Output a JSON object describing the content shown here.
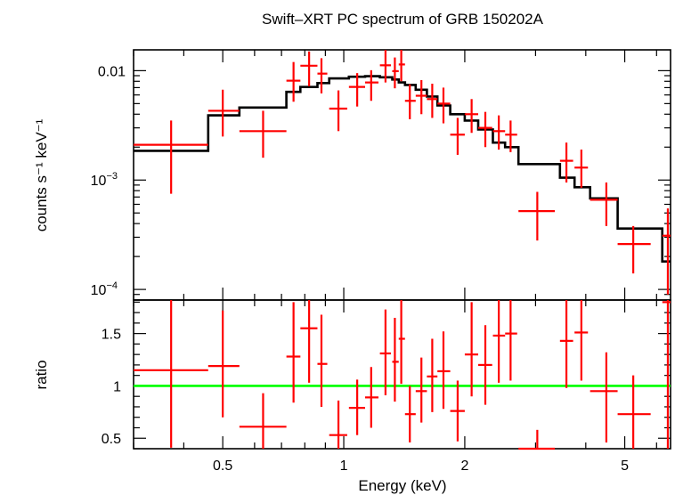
{
  "title": "Swift–XRT PC spectrum of GRB 150202A",
  "colors": {
    "data": "#ff0000",
    "model": "#000000",
    "ratio_line": "#00ff00",
    "axes": "#000000"
  },
  "chart_data": [
    {
      "type": "scatter",
      "panel": "spectrum",
      "title": "Swift–XRT PC spectrum of GRB 150202A",
      "ylabel": "counts s⁻¹ keV⁻¹",
      "xlabel": "",
      "xscale": "log",
      "yscale": "log",
      "xlim": [
        0.3,
        6.5
      ],
      "ylim": [
        8e-05,
        0.0155
      ],
      "yticks": [
        {
          "value": 0.01,
          "label": "0.01"
        },
        {
          "value": 0.001,
          "label": "10",
          "sup": "−3"
        },
        {
          "value": 0.0001,
          "label": "10",
          "sup": "−4"
        }
      ],
      "series": [
        {
          "role": "data",
          "points": [
            {
              "x": 0.372,
              "xlo": 0.3,
              "xhi": 0.46,
              "y": 0.0021,
              "ylo": 0.00075,
              "yhi": 0.0035
            },
            {
              "x": 0.5,
              "xlo": 0.46,
              "xhi": 0.55,
              "y": 0.0043,
              "ylo": 0.0025,
              "yhi": 0.0067
            },
            {
              "x": 0.63,
              "xlo": 0.55,
              "xhi": 0.72,
              "y": 0.0028,
              "ylo": 0.0016,
              "yhi": 0.0043
            },
            {
              "x": 0.75,
              "xlo": 0.72,
              "xhi": 0.78,
              "y": 0.0081,
              "ylo": 0.0052,
              "yhi": 0.012
            },
            {
              "x": 0.82,
              "xlo": 0.78,
              "xhi": 0.86,
              "y": 0.0111,
              "ylo": 0.0072,
              "yhi": 0.015
            },
            {
              "x": 0.88,
              "xlo": 0.86,
              "xhi": 0.91,
              "y": 0.0094,
              "ylo": 0.0062,
              "yhi": 0.013
            },
            {
              "x": 0.97,
              "xlo": 0.92,
              "xhi": 1.02,
              "y": 0.0045,
              "ylo": 0.0028,
              "yhi": 0.0066
            },
            {
              "x": 1.08,
              "xlo": 1.03,
              "xhi": 1.13,
              "y": 0.0071,
              "ylo": 0.0047,
              "yhi": 0.0095
            },
            {
              "x": 1.17,
              "xlo": 1.13,
              "xhi": 1.22,
              "y": 0.0078,
              "ylo": 0.0053,
              "yhi": 0.0101
            },
            {
              "x": 1.27,
              "xlo": 1.23,
              "xhi": 1.31,
              "y": 0.0112,
              "ylo": 0.0078,
              "yhi": 0.0155
            },
            {
              "x": 1.34,
              "xlo": 1.32,
              "xhi": 1.37,
              "y": 0.0099,
              "ylo": 0.0069,
              "yhi": 0.0132
            },
            {
              "x": 1.39,
              "xlo": 1.37,
              "xhi": 1.42,
              "y": 0.0114,
              "ylo": 0.008,
              "yhi": 0.0155
            },
            {
              "x": 1.46,
              "xlo": 1.42,
              "xhi": 1.51,
              "y": 0.0053,
              "ylo": 0.0036,
              "yhi": 0.0075
            },
            {
              "x": 1.56,
              "xlo": 1.51,
              "xhi": 1.61,
              "y": 0.0059,
              "ylo": 0.004,
              "yhi": 0.0082
            },
            {
              "x": 1.66,
              "xlo": 1.61,
              "xhi": 1.71,
              "y": 0.0055,
              "ylo": 0.0037,
              "yhi": 0.0076
            },
            {
              "x": 1.77,
              "xlo": 1.71,
              "xhi": 1.84,
              "y": 0.005,
              "ylo": 0.0033,
              "yhi": 0.007
            },
            {
              "x": 1.92,
              "xlo": 1.84,
              "xhi": 2.0,
              "y": 0.0026,
              "ylo": 0.0017,
              "yhi": 0.0037
            },
            {
              "x": 2.08,
              "xlo": 2.0,
              "xhi": 2.16,
              "y": 0.004,
              "ylo": 0.0027,
              "yhi": 0.0055
            },
            {
              "x": 2.25,
              "xlo": 2.16,
              "xhi": 2.34,
              "y": 0.003,
              "ylo": 0.002,
              "yhi": 0.0042
            },
            {
              "x": 2.43,
              "xlo": 2.35,
              "xhi": 2.52,
              "y": 0.0028,
              "ylo": 0.0019,
              "yhi": 0.0039
            },
            {
              "x": 2.6,
              "xlo": 2.52,
              "xhi": 2.7,
              "y": 0.0026,
              "ylo": 0.0018,
              "yhi": 0.0035
            },
            {
              "x": 3.03,
              "xlo": 2.72,
              "xhi": 3.35,
              "y": 0.00052,
              "ylo": 0.00028,
              "yhi": 0.00078
            },
            {
              "x": 3.58,
              "xlo": 3.45,
              "xhi": 3.72,
              "y": 0.0015,
              "ylo": 0.00095,
              "yhi": 0.0022
            },
            {
              "x": 3.9,
              "xlo": 3.75,
              "xhi": 4.05,
              "y": 0.0013,
              "ylo": 0.00085,
              "yhi": 0.0019
            },
            {
              "x": 4.5,
              "xlo": 4.1,
              "xhi": 4.8,
              "y": 0.00066,
              "ylo": 0.00038,
              "yhi": 0.00095
            },
            {
              "x": 5.25,
              "xlo": 4.8,
              "xhi": 5.8,
              "y": 0.00026,
              "ylo": 0.00014,
              "yhi": 0.00038
            },
            {
              "x": 6.4,
              "xlo": 6.2,
              "xhi": 6.5,
              "y": 0.00031,
              "ylo": 9e-05,
              "yhi": 0.00055
            }
          ]
        },
        {
          "role": "model",
          "steps": [
            {
              "xlo": 0.3,
              "xhi": 0.46,
              "y": 0.00185
            },
            {
              "xlo": 0.46,
              "xhi": 0.55,
              "y": 0.0039
            },
            {
              "xlo": 0.55,
              "xhi": 0.72,
              "y": 0.0046
            },
            {
              "xlo": 0.72,
              "xhi": 0.78,
              "y": 0.0064
            },
            {
              "xlo": 0.78,
              "xhi": 0.86,
              "y": 0.0071
            },
            {
              "xlo": 0.86,
              "xhi": 0.92,
              "y": 0.0077
            },
            {
              "xlo": 0.92,
              "xhi": 1.03,
              "y": 0.0085
            },
            {
              "xlo": 1.03,
              "xhi": 1.13,
              "y": 0.0088
            },
            {
              "xlo": 1.13,
              "xhi": 1.23,
              "y": 0.0089
            },
            {
              "xlo": 1.23,
              "xhi": 1.32,
              "y": 0.0087
            },
            {
              "xlo": 1.32,
              "xhi": 1.37,
              "y": 0.0083
            },
            {
              "xlo": 1.37,
              "xhi": 1.42,
              "y": 0.0078
            },
            {
              "xlo": 1.42,
              "xhi": 1.51,
              "y": 0.0074
            },
            {
              "xlo": 1.51,
              "xhi": 1.61,
              "y": 0.0067
            },
            {
              "xlo": 1.61,
              "xhi": 1.71,
              "y": 0.0058
            },
            {
              "xlo": 1.71,
              "xhi": 1.84,
              "y": 0.0048
            },
            {
              "xlo": 1.84,
              "xhi": 2.0,
              "y": 0.004
            },
            {
              "xlo": 2.0,
              "xhi": 2.16,
              "y": 0.0035
            },
            {
              "xlo": 2.16,
              "xhi": 2.35,
              "y": 0.0029
            },
            {
              "xlo": 2.35,
              "xhi": 2.52,
              "y": 0.0022
            },
            {
              "xlo": 2.52,
              "xhi": 2.72,
              "y": 0.002
            },
            {
              "xlo": 2.72,
              "xhi": 3.45,
              "y": 0.0014
            },
            {
              "xlo": 3.45,
              "xhi": 3.75,
              "y": 0.00105
            },
            {
              "xlo": 3.75,
              "xhi": 4.1,
              "y": 0.00086
            },
            {
              "xlo": 4.1,
              "xhi": 4.8,
              "y": 0.00068
            },
            {
              "xlo": 4.8,
              "xhi": 6.2,
              "y": 0.00036
            },
            {
              "xlo": 6.2,
              "xhi": 6.5,
              "y": 0.00018
            }
          ]
        }
      ]
    },
    {
      "type": "scatter",
      "panel": "ratio",
      "ylabel": "ratio",
      "xlabel": "Energy (keV)",
      "xscale": "log",
      "xlim": [
        0.3,
        6.5
      ],
      "ylim": [
        0.4,
        1.82
      ],
      "xticks": [
        {
          "value": 0.5,
          "label": "0.5"
        },
        {
          "value": 1,
          "label": "1"
        },
        {
          "value": 2,
          "label": "2"
        },
        {
          "value": 5,
          "label": "5"
        }
      ],
      "yticks": [
        {
          "value": 0.5,
          "label": "0.5"
        },
        {
          "value": 1,
          "label": "1"
        },
        {
          "value": 1.5,
          "label": "1.5"
        }
      ],
      "reference_line": 1,
      "points": [
        {
          "x": 0.372,
          "xlo": 0.3,
          "xhi": 0.46,
          "y": 1.15,
          "ylo": 0.41,
          "yhi": 1.82
        },
        {
          "x": 0.5,
          "xlo": 0.46,
          "xhi": 0.55,
          "y": 1.19,
          "ylo": 0.7,
          "yhi": 1.72
        },
        {
          "x": 0.63,
          "xlo": 0.55,
          "xhi": 0.72,
          "y": 0.61,
          "ylo": 0.4,
          "yhi": 0.93
        },
        {
          "x": 0.75,
          "xlo": 0.72,
          "xhi": 0.78,
          "y": 1.28,
          "ylo": 0.84,
          "yhi": 1.8
        },
        {
          "x": 0.82,
          "xlo": 0.78,
          "xhi": 0.86,
          "y": 1.55,
          "ylo": 1.03,
          "yhi": 1.82
        },
        {
          "x": 0.88,
          "xlo": 0.86,
          "xhi": 0.91,
          "y": 1.21,
          "ylo": 0.8,
          "yhi": 1.68
        },
        {
          "x": 0.97,
          "xlo": 0.92,
          "xhi": 1.02,
          "y": 0.53,
          "ylo": 0.4,
          "yhi": 0.86
        },
        {
          "x": 1.08,
          "xlo": 1.03,
          "xhi": 1.13,
          "y": 0.79,
          "ylo": 0.53,
          "yhi": 1.06
        },
        {
          "x": 1.17,
          "xlo": 1.13,
          "xhi": 1.22,
          "y": 0.89,
          "ylo": 0.6,
          "yhi": 1.18
        },
        {
          "x": 1.27,
          "xlo": 1.23,
          "xhi": 1.31,
          "y": 1.31,
          "ylo": 0.91,
          "yhi": 1.73
        },
        {
          "x": 1.34,
          "xlo": 1.32,
          "xhi": 1.37,
          "y": 1.23,
          "ylo": 0.85,
          "yhi": 1.65
        },
        {
          "x": 1.39,
          "xlo": 1.37,
          "xhi": 1.42,
          "y": 1.45,
          "ylo": 1.02,
          "yhi": 1.82
        },
        {
          "x": 1.46,
          "xlo": 1.42,
          "xhi": 1.51,
          "y": 0.73,
          "ylo": 0.46,
          "yhi": 1.0
        },
        {
          "x": 1.56,
          "xlo": 1.51,
          "xhi": 1.61,
          "y": 0.95,
          "ylo": 0.65,
          "yhi": 1.27
        },
        {
          "x": 1.66,
          "xlo": 1.61,
          "xhi": 1.71,
          "y": 1.09,
          "ylo": 0.75,
          "yhi": 1.45
        },
        {
          "x": 1.77,
          "xlo": 1.71,
          "xhi": 1.84,
          "y": 1.14,
          "ylo": 0.78,
          "yhi": 1.52
        },
        {
          "x": 1.92,
          "xlo": 1.84,
          "xhi": 2.0,
          "y": 0.76,
          "ylo": 0.47,
          "yhi": 1.05
        },
        {
          "x": 2.08,
          "xlo": 2.0,
          "xhi": 2.16,
          "y": 1.3,
          "ylo": 0.9,
          "yhi": 1.8
        },
        {
          "x": 2.25,
          "xlo": 2.16,
          "xhi": 2.34,
          "y": 1.2,
          "ylo": 0.82,
          "yhi": 1.58
        },
        {
          "x": 2.43,
          "xlo": 2.35,
          "xhi": 2.52,
          "y": 1.48,
          "ylo": 1.03,
          "yhi": 1.82
        },
        {
          "x": 2.6,
          "xlo": 2.52,
          "xhi": 2.7,
          "y": 1.5,
          "ylo": 1.05,
          "yhi": 1.82
        },
        {
          "x": 3.03,
          "xlo": 2.72,
          "xhi": 3.35,
          "y": 0.4,
          "ylo": 0.4,
          "yhi": 0.58
        },
        {
          "x": 3.58,
          "xlo": 3.45,
          "xhi": 3.72,
          "y": 1.43,
          "ylo": 0.98,
          "yhi": 1.82
        },
        {
          "x": 3.9,
          "xlo": 3.75,
          "xhi": 4.05,
          "y": 1.51,
          "ylo": 1.05,
          "yhi": 1.82
        },
        {
          "x": 4.5,
          "xlo": 4.1,
          "xhi": 4.8,
          "y": 0.95,
          "ylo": 0.46,
          "yhi": 1.32
        },
        {
          "x": 5.25,
          "xlo": 4.8,
          "xhi": 5.8,
          "y": 0.73,
          "ylo": 0.4,
          "yhi": 1.1
        },
        {
          "x": 6.4,
          "xlo": 6.2,
          "xhi": 6.5,
          "y": 1.8,
          "ylo": 0.4,
          "yhi": 1.82
        }
      ]
    }
  ]
}
